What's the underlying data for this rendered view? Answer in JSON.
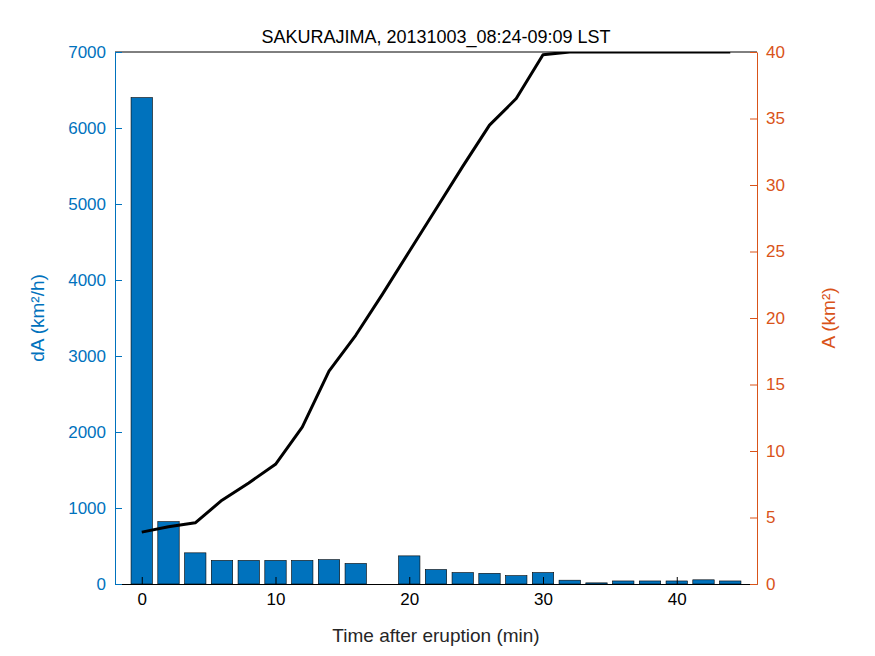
{
  "chart_data": {
    "type": "bar",
    "title": "SAKURAJIMA, 20131003_08:24-09:09 LST",
    "x_label": "Time after eruption (min)",
    "y_label": "dA (km²/h)",
    "y2_label": "A (km²)",
    "x": [
      0,
      2,
      4,
      6,
      8,
      10,
      12,
      14,
      16,
      18,
      20,
      22,
      24,
      26,
      28,
      30,
      32,
      34,
      36,
      38,
      40,
      42,
      44
    ],
    "series": [
      {
        "type": "bar",
        "color": "#0072bd",
        "values": [
          6400,
          820,
          410,
          310,
          310,
          310,
          310,
          320,
          270,
          null,
          370,
          190,
          150,
          140,
          110,
          150,
          50,
          15,
          40,
          40,
          40,
          55,
          40
        ]
      },
      {
        "type": "line",
        "color": "#000000",
        "axis": "y2",
        "values": [
          3.9,
          4.3,
          4.6,
          6.3,
          7.6,
          9.0,
          11.8,
          16.0,
          18.7,
          21.8,
          25.0,
          28.2,
          31.4,
          34.5,
          36.5,
          39.8,
          40,
          40,
          40,
          40,
          40,
          40,
          40
        ]
      }
    ],
    "xlim": [
      -2,
      46
    ],
    "xticks": [
      0,
      10,
      20,
      30,
      40
    ],
    "ylim": [
      0,
      7000
    ],
    "yticks": [
      0,
      1000,
      2000,
      3000,
      4000,
      5000,
      6000,
      7000
    ],
    "y2lim": [
      0,
      40
    ],
    "y2ticks": [
      0,
      5,
      10,
      15,
      20,
      25,
      30,
      35,
      40
    ],
    "grid": false
  }
}
